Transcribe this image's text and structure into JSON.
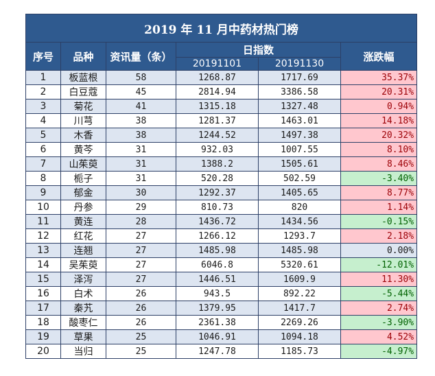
{
  "title": "2019 年 11 月中药材热门榜",
  "headers": {
    "rank": "序号",
    "name": "品种",
    "news": "资讯量（条）",
    "index": "日指数",
    "date1": "20191101",
    "date2": "20191130",
    "change": "涨跌幅"
  },
  "rows": [
    {
      "rank": "1",
      "name": "板蓝根",
      "news": "58",
      "v1": "1268.87",
      "v2": "1717.69",
      "chg": "35.37%",
      "dir": "up"
    },
    {
      "rank": "2",
      "name": "白豆蔻",
      "news": "45",
      "v1": "2814.94",
      "v2": "3386.58",
      "chg": "20.31%",
      "dir": "up"
    },
    {
      "rank": "3",
      "name": "菊花",
      "news": "41",
      "v1": "1315.18",
      "v2": "1327.48",
      "chg": "0.94%",
      "dir": "up"
    },
    {
      "rank": "4",
      "name": "川芎",
      "news": "38",
      "v1": "1281.37",
      "v2": "1463.01",
      "chg": "14.18%",
      "dir": "up"
    },
    {
      "rank": "5",
      "name": "木香",
      "news": "38",
      "v1": "1244.52",
      "v2": "1497.38",
      "chg": "20.32%",
      "dir": "up"
    },
    {
      "rank": "6",
      "name": "黄芩",
      "news": "31",
      "v1": "932.03",
      "v2": "1007.55",
      "chg": "8.10%",
      "dir": "up"
    },
    {
      "rank": "7",
      "name": "山茱萸",
      "news": "31",
      "v1": "1388.2",
      "v2": "1505.61",
      "chg": "8.46%",
      "dir": "up"
    },
    {
      "rank": "8",
      "name": "栀子",
      "news": "31",
      "v1": "520.28",
      "v2": "502.59",
      "chg": "-3.40%",
      "dir": "down"
    },
    {
      "rank": "9",
      "name": "郁金",
      "news": "30",
      "v1": "1292.37",
      "v2": "1405.65",
      "chg": "8.77%",
      "dir": "up"
    },
    {
      "rank": "10",
      "name": "丹参",
      "news": "29",
      "v1": "810.73",
      "v2": "820",
      "chg": "1.14%",
      "dir": "up"
    },
    {
      "rank": "11",
      "name": "黄连",
      "news": "28",
      "v1": "1436.72",
      "v2": "1434.56",
      "chg": "-0.15%",
      "dir": "down"
    },
    {
      "rank": "12",
      "name": "红花",
      "news": "27",
      "v1": "1266.12",
      "v2": "1293.7",
      "chg": "2.18%",
      "dir": "up"
    },
    {
      "rank": "13",
      "name": "连翘",
      "news": "27",
      "v1": "1485.98",
      "v2": "1485.98",
      "chg": "0.00%",
      "dir": "flat"
    },
    {
      "rank": "14",
      "name": "吴茱萸",
      "news": "27",
      "v1": "6046.8",
      "v2": "5320.61",
      "chg": "-12.01%",
      "dir": "down"
    },
    {
      "rank": "15",
      "name": "泽泻",
      "news": "27",
      "v1": "1446.51",
      "v2": "1609.9",
      "chg": "11.30%",
      "dir": "up"
    },
    {
      "rank": "16",
      "name": "白术",
      "news": "26",
      "v1": "943.5",
      "v2": "892.22",
      "chg": "-5.44%",
      "dir": "down"
    },
    {
      "rank": "17",
      "name": "秦艽",
      "news": "26",
      "v1": "1379.95",
      "v2": "1417.7",
      "chg": "2.74%",
      "dir": "up"
    },
    {
      "rank": "18",
      "name": "酸枣仁",
      "news": "26",
      "v1": "2361.38",
      "v2": "2269.26",
      "chg": "-3.90%",
      "dir": "down"
    },
    {
      "rank": "19",
      "name": "草果",
      "news": "25",
      "v1": "1046.91",
      "v2": "1094.18",
      "chg": "4.52%",
      "dir": "up"
    },
    {
      "rank": "20",
      "name": "当归",
      "news": "25",
      "v1": "1247.78",
      "v2": "1185.73",
      "chg": "-4.97%",
      "dir": "down"
    }
  ]
}
